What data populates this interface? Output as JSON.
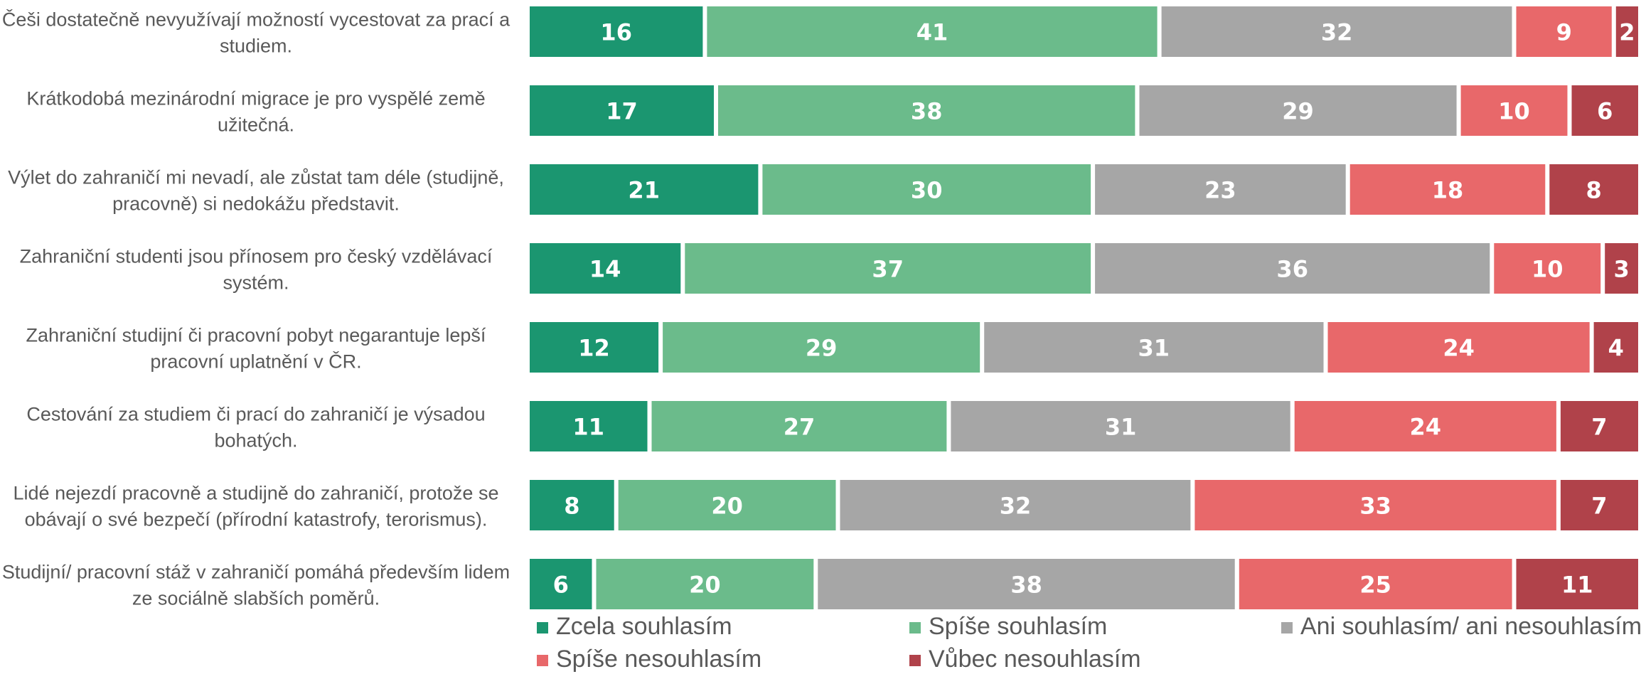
{
  "chart_data": {
    "type": "bar",
    "orientation": "horizontal",
    "stacked": true,
    "normalized": true,
    "title": "",
    "xlabel": "",
    "ylabel": "",
    "xlim": [
      0,
      100
    ],
    "grid": false,
    "legend_position": "bottom",
    "categories": [
      [
        "Češi dostatečně nevyužívají možností vycestovat za prací a",
        "studiem."
      ],
      [
        "Krátkodobá mezinárodní migrace je pro vyspělé země",
        "užitečná."
      ],
      [
        "Výlet do zahraničí mi nevadí, ale zůstat tam déle (studijně,",
        "pracovně) si nedokážu představit."
      ],
      [
        "Zahraniční studenti jsou přínosem pro český vzdělávací",
        "systém."
      ],
      [
        "Zahraniční studijní či pracovní pobyt negarantuje lepší",
        "pracovní uplatnění v ČR."
      ],
      [
        "Cestování za studiem či prací do zahraničí je výsadou",
        "bohatých."
      ],
      [
        "Lidé nejezdí pracovně a studijně do zahraničí, protože se",
        "obávají o své bezpečí (přírodní katastrofy, terorismus)."
      ],
      [
        "Studijní/ pracovní stáž v zahraničí pomáhá především lidem",
        "ze sociálně slabších poměrů."
      ]
    ],
    "series": [
      {
        "name": "Zcela souhlasím",
        "color": "#1b9670",
        "values": [
          16,
          17,
          21,
          14,
          12,
          11,
          8,
          6
        ]
      },
      {
        "name": "Spíše souhlasím",
        "color": "#6bbb8b",
        "values": [
          41,
          38,
          30,
          37,
          29,
          27,
          20,
          20
        ]
      },
      {
        "name": "Ani souhlasím/ ani nesouhlasím",
        "color": "#a6a6a6",
        "values": [
          32,
          29,
          23,
          36,
          31,
          31,
          32,
          38
        ]
      },
      {
        "name": "Spíše nesouhlasím",
        "color": "#e8686a",
        "values": [
          9,
          10,
          18,
          10,
          24,
          24,
          33,
          25
        ]
      },
      {
        "name": "Vůbec nesouhlasím",
        "color": "#b0424a",
        "values": [
          2,
          6,
          8,
          3,
          4,
          7,
          7,
          11
        ]
      }
    ]
  }
}
